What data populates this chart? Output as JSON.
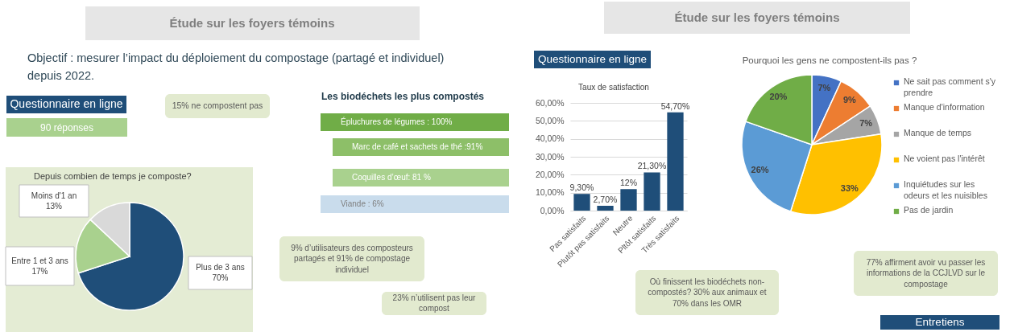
{
  "chart_data": [
    {
      "type": "other",
      "title": "Étude sur les foyers témoins",
      "annotations": [
        "Objectif : mesurer l’impact du déploiement du compostage (partagé et individuel) depuis 2022.",
        "Questionnaire en ligne",
        "90 réponses",
        "15% ne compostent pas",
        "9% d’utilisateurs des composteurs partagés et 91% de compostage individuel",
        "23% n’utilisent pas leur compost"
      ]
    },
    {
      "type": "pie",
      "title": "Depuis combien de temps je composte?",
      "categories": [
        "Plus de 3 ans",
        "Entre 1 et 3 ans",
        "Moins d'1 an"
      ],
      "values": [
        70,
        17,
        13
      ],
      "colors": [
        "#1f4e79",
        "#a9d18e",
        "#d9d9d9"
      ],
      "value_labels": [
        "70%",
        "17%",
        "13%"
      ]
    },
    {
      "type": "other",
      "title": "Les biodéchets les plus compostés",
      "annotations": [
        "Épluchures de légumes : 100%",
        "Marc de café et sachets de thé :91%",
        "Coquilles d’œuf: 81 %",
        "Viande : 6%"
      ],
      "colors": [
        "#70ad47",
        "#8dbf68",
        "#a9d18e",
        "#c9dcec"
      ]
    },
    {
      "type": "other",
      "title": "Étude sur les foyers témoins",
      "annotations": [
        "Questionnaire en ligne",
        "Où finissent les biodéchets non-compostés? 30% aux animaux et 70% dans les OMR",
        "77% affirment avoir vu passer les informations de la CCJLVD sur le compostage",
        "Entretiens"
      ]
    },
    {
      "type": "bar",
      "title": "Taux de satisfaction",
      "categories": [
        "Pas satisfaits",
        "Plutôt pas satisfaits",
        "Neutre",
        "Pltôt satisfaits",
        "Très satisfaits"
      ],
      "values": [
        9.3,
        2.7,
        12,
        21.3,
        54.7
      ],
      "color": "#1f4e79",
      "value_labels": [
        "9,30%",
        "2,70%",
        "12%",
        "21,30%",
        "54,70%"
      ],
      "ylim": [
        0,
        60
      ],
      "yticks": [
        {
          "value": 0,
          "label": "0,00%"
        },
        {
          "value": 10,
          "label": "10,00%"
        },
        {
          "value": 20,
          "label": "20,00%"
        },
        {
          "value": 30,
          "label": "30,00%"
        },
        {
          "value": 40,
          "label": "40,00%"
        },
        {
          "value": 50,
          "label": "50,00%"
        },
        {
          "value": 60,
          "label": "60,00%"
        }
      ],
      "grid": "y"
    },
    {
      "type": "pie",
      "title": "Pourquoi les gens ne compostent-ils pas ?",
      "categories": [
        "Ne sait pas comment s'y prendre",
        "Manque d'information",
        "Manque de temps",
        "Ne voient pas l'intérêt",
        "Inquiétudes sur les odeurs et les nuisibles",
        "Pas de jardin"
      ],
      "values": [
        7,
        9,
        7,
        33,
        26,
        20
      ],
      "colors": [
        "#4472c4",
        "#ed7d31",
        "#a5a5a5",
        "#ffc000",
        "#5b9bd5",
        "#70ad47"
      ],
      "value_labels": [
        "7%",
        "9%",
        "7%",
        "33%",
        "26%",
        "20%"
      ],
      "legend": "right"
    }
  ]
}
